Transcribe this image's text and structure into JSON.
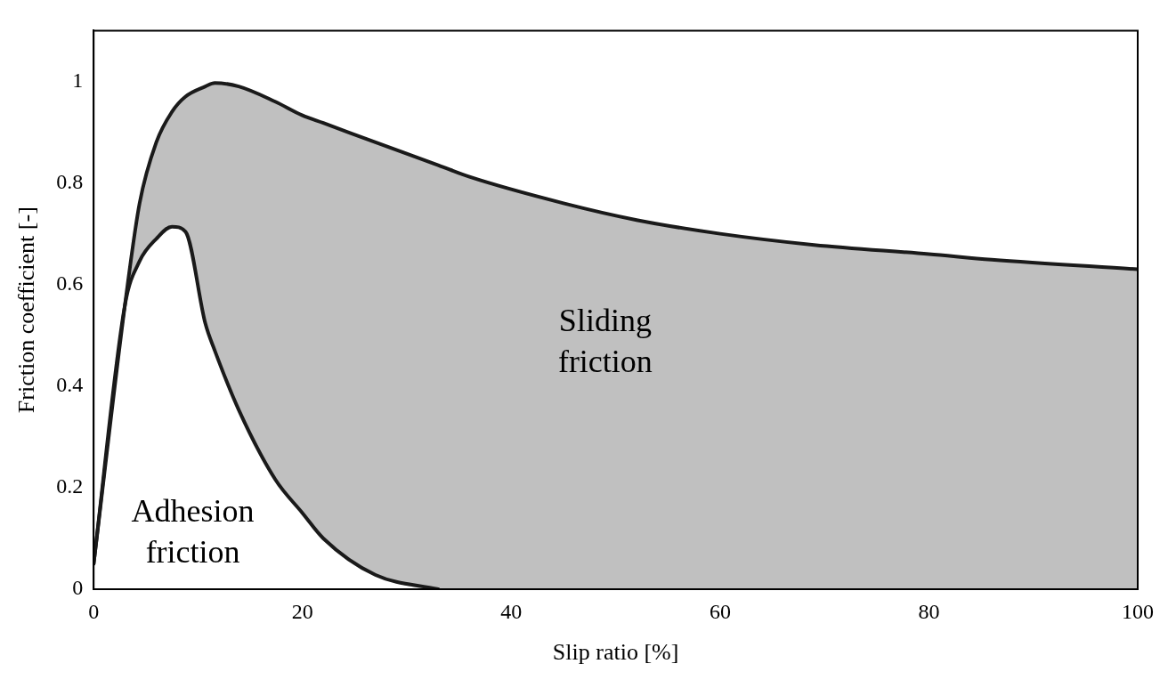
{
  "chart_data": {
    "type": "line",
    "xlabel": "Slip ratio [%]",
    "ylabel": "Friction coefficient [-]",
    "xlim": [
      0,
      100
    ],
    "ylim": [
      0,
      1.1
    ],
    "xticks": [
      0,
      20,
      40,
      60,
      80,
      100
    ],
    "yticks": [
      0,
      0.2,
      0.4,
      0.6,
      0.8,
      1
    ],
    "grid": false,
    "legend": false,
    "marker": "none",
    "line_style": "solid",
    "x": [
      0,
      3,
      4.4,
      6,
      7.5,
      8.8,
      10.7,
      11.6,
      13.9,
      17.4,
      20,
      22,
      27,
      33,
      36,
      45,
      52,
      60,
      69,
      80,
      86,
      100
    ],
    "series": [
      {
        "color": "#1a1a1a",
        "values": [
          0.05,
          0.56,
          0.76,
          0.88,
          0.94,
          0.97,
          0.99,
          0.997,
          0.99,
          0.96,
          0.933,
          0.918,
          0.88,
          0.835,
          0.812,
          0.76,
          0.727,
          0.7,
          0.678,
          0.66,
          0.649,
          0.63
        ],
        "lower": [
          0.05,
          0.56,
          0.646,
          0.69,
          0.714,
          0.704,
          0.523,
          0.47,
          0.353,
          0.216,
          0.15,
          0.1,
          0.028,
          0,
          0,
          0,
          0,
          0,
          0,
          0,
          0,
          0
        ],
        "upper": [
          0.05,
          0.56,
          0.76,
          0.88,
          0.94,
          0.97,
          0.99,
          0.997,
          0.99,
          0.96,
          0.933,
          0.918,
          0.88,
          0.835,
          0.812,
          0.76,
          0.727,
          0.7,
          0.678,
          0.66,
          0.649,
          0.63
        ]
      },
      {
        "color": "#1a1a1a",
        "values": [
          0.05,
          0.56,
          0.646,
          0.69,
          0.714,
          0.704,
          0.523,
          0.47,
          0.353,
          0.216,
          0.15,
          0.1,
          0.028,
          0,
          null,
          null,
          null,
          null,
          null,
          null,
          null,
          null
        ]
      }
    ],
    "annotations": [
      "Sliding\nfriction",
      "Adhesion\nfriction"
    ]
  }
}
